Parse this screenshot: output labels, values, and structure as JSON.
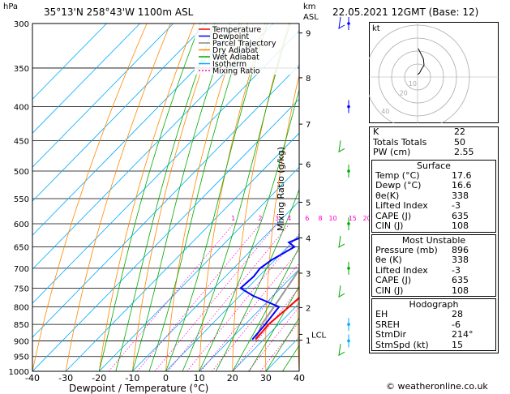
{
  "header": {
    "hpa_label": "hPa",
    "location": "35°13'N 258°43'W 1100m ASL",
    "km_label": "km",
    "asl_label": "ASL",
    "date": "22.05.2021 12GMT (Base: 12)"
  },
  "chart_data": {
    "type": "skewt",
    "xlabel": "Dewpoint / Temperature (°C)",
    "ylabel_right": "Mixing Ratio (g/kg)",
    "x_ticks": [
      -40,
      -30,
      -20,
      -10,
      0,
      10,
      20,
      30,
      40
    ],
    "pressure_ticks": [
      300,
      350,
      400,
      450,
      500,
      550,
      600,
      650,
      700,
      750,
      800,
      850,
      900,
      950,
      1000
    ],
    "km_ticks": [
      {
        "label": "9",
        "p": 310
      },
      {
        "label": "8",
        "p": 362
      },
      {
        "label": "7",
        "p": 425
      },
      {
        "label": "6",
        "p": 488
      },
      {
        "label": "5",
        "p": 557
      },
      {
        "label": "4",
        "p": 630
      },
      {
        "label": "3",
        "p": 712
      },
      {
        "label": "2",
        "p": 802
      },
      {
        "label": "1",
        "p": 898
      }
    ],
    "lcl": {
      "label": "LCL",
      "p": 880
    },
    "mixing_ratio_labels": [
      "1",
      "2",
      "3",
      "4",
      "6",
      "8",
      "10",
      "15",
      "20",
      "25"
    ],
    "mixing_ratio_values": [
      1,
      2,
      3,
      4,
      6,
      8,
      10,
      15,
      20,
      25
    ],
    "legend": [
      "Temperature",
      "Dewpoint",
      "Parcel Trajectory",
      "Dry Adiabat",
      "Wet Adiabat",
      "Isotherm",
      "Mixing Ratio"
    ],
    "legend_colors": [
      "#ff0000",
      "#0000ff",
      "#888888",
      "#ff8800",
      "#00aa00",
      "#00aaff",
      "#ff00cc"
    ],
    "temperature": [
      [
        896,
        17.6
      ],
      [
        850,
        17.0
      ],
      [
        800,
        18.0
      ],
      [
        770,
        18.5
      ],
      [
        750,
        16.0
      ],
      [
        700,
        12.0
      ],
      [
        650,
        7.0
      ],
      [
        600,
        2.5
      ],
      [
        550,
        -2.0
      ],
      [
        500,
        -7.0
      ],
      [
        450,
        -12.0
      ],
      [
        420,
        -16.0
      ],
      [
        400,
        -18.0
      ],
      [
        390,
        -17.5
      ],
      [
        350,
        -23.0
      ],
      [
        300,
        -31.0
      ]
    ],
    "dewpoint": [
      [
        896,
        16.6
      ],
      [
        850,
        16.0
      ],
      [
        800,
        15.0
      ],
      [
        770,
        4.0
      ],
      [
        750,
        -2.0
      ],
      [
        720,
        -1.5
      ],
      [
        700,
        -2.0
      ],
      [
        680,
        -1.0
      ],
      [
        650,
        2.0
      ],
      [
        640,
        -1.0
      ],
      [
        620,
        3.0
      ],
      [
        600,
        0.0
      ],
      [
        560,
        -4.0
      ],
      [
        530,
        -6.0
      ],
      [
        500,
        -8.0
      ],
      [
        450,
        -12.0
      ],
      [
        420,
        -16.0
      ],
      [
        400,
        -33.0
      ],
      [
        385,
        -30.0
      ],
      [
        360,
        -30.0
      ],
      [
        345,
        -22.0
      ],
      [
        335,
        -37.0
      ],
      [
        300,
        -40.0
      ]
    ],
    "parcel": [
      [
        896,
        17.6
      ],
      [
        850,
        15.0
      ],
      [
        800,
        13.5
      ],
      [
        700,
        10.0
      ],
      [
        600,
        5.5
      ],
      [
        500,
        -1.0
      ],
      [
        400,
        -11.0
      ],
      [
        300,
        -24.0
      ]
    ]
  },
  "hodograph": {
    "unit": "kt",
    "ring_labels": [
      "10",
      "20",
      "40"
    ],
    "trace": [
      [
        0.0,
        -2.0
      ],
      [
        1.5,
        -3.0
      ],
      [
        3.0,
        -6.0
      ],
      [
        5.0,
        -9.0
      ],
      [
        4.5,
        -14.0
      ],
      [
        2.5,
        -18.0
      ],
      [
        0.5,
        -22.0
      ]
    ]
  },
  "indices": {
    "rows": [
      {
        "k": "K",
        "v": "22"
      },
      {
        "k": "Totals Totals",
        "v": "50"
      },
      {
        "k": "PW (cm)",
        "v": "2.55"
      }
    ]
  },
  "surface": {
    "title": "Surface",
    "rows": [
      {
        "k": "Temp (°C)",
        "v": "17.6"
      },
      {
        "k": "Dewp (°C)",
        "v": "16.6"
      },
      {
        "k": "θe(K)",
        "v": "338"
      },
      {
        "k": "Lifted Index",
        "v": "-3"
      },
      {
        "k": "CAPE (J)",
        "v": "635"
      },
      {
        "k": "CIN (J)",
        "v": "108"
      }
    ]
  },
  "most_unstable": {
    "title": "Most Unstable",
    "rows": [
      {
        "k": "Pressure (mb)",
        "v": "896"
      },
      {
        "k": "θe (K)",
        "v": "338"
      },
      {
        "k": "Lifted Index",
        "v": "-3"
      },
      {
        "k": "CAPE (J)",
        "v": "635"
      },
      {
        "k": "CIN (J)",
        "v": "108"
      }
    ]
  },
  "hodo_table": {
    "title": "Hodograph",
    "rows": [
      {
        "k": "EH",
        "v": "28"
      },
      {
        "k": "SREH",
        "v": "-6"
      },
      {
        "k": "StmDir",
        "v": "214°"
      },
      {
        "k": "StmSpd (kt)",
        "v": "15"
      }
    ]
  },
  "footer": "© weatheronline.co.uk"
}
